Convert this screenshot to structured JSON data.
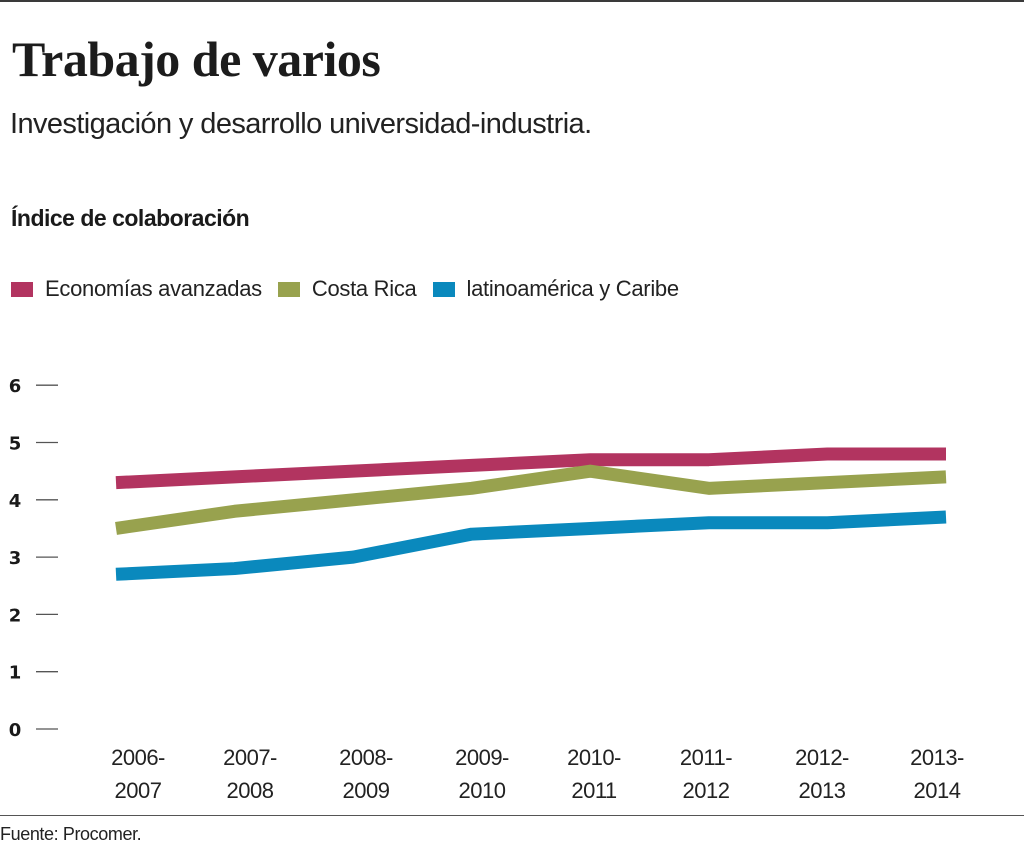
{
  "header": {
    "title": "Trabajo de varios",
    "subtitle": "Investigación y desarrollo universidad-industria.",
    "section_label": "Índice de colaboración"
  },
  "legend": [
    {
      "label": "Economías avanzadas",
      "color": "#b23460"
    },
    {
      "label": "Costa Rica",
      "color": "#98a24e"
    },
    {
      "label": "latinoamérica y Caribe",
      "color": "#0a89bd"
    }
  ],
  "footer": {
    "source": "Fuente: Procomer."
  },
  "chart_data": {
    "type": "line",
    "title": "Índice de colaboración",
    "xlabel": "",
    "ylabel": "",
    "categories": [
      [
        "2006-",
        "2007"
      ],
      [
        "2007-",
        "2008"
      ],
      [
        "2008-",
        "2009"
      ],
      [
        "2009-",
        "2010"
      ],
      [
        "2010-",
        "2011"
      ],
      [
        "2011-",
        "2012"
      ],
      [
        "2012-",
        "2013"
      ],
      [
        "2013-",
        "2014"
      ]
    ],
    "yticks": [
      0,
      1,
      2,
      3,
      4,
      5,
      6
    ],
    "ylim": [
      0,
      6
    ],
    "grid": false,
    "legend_position": "top-left",
    "series": [
      {
        "name": "Economías avanzadas",
        "color": "#b23460",
        "values": [
          4.3,
          4.4,
          4.5,
          4.6,
          4.7,
          4.7,
          4.8,
          4.8
        ]
      },
      {
        "name": "Costa Rica",
        "color": "#98a24e",
        "values": [
          3.5,
          3.8,
          4.0,
          4.2,
          4.5,
          4.2,
          4.3,
          4.4
        ]
      },
      {
        "name": "latinoamérica y Caribe",
        "color": "#0a89bd",
        "values": [
          2.7,
          2.8,
          3.0,
          3.4,
          3.5,
          3.6,
          3.6,
          3.7
        ]
      }
    ]
  }
}
